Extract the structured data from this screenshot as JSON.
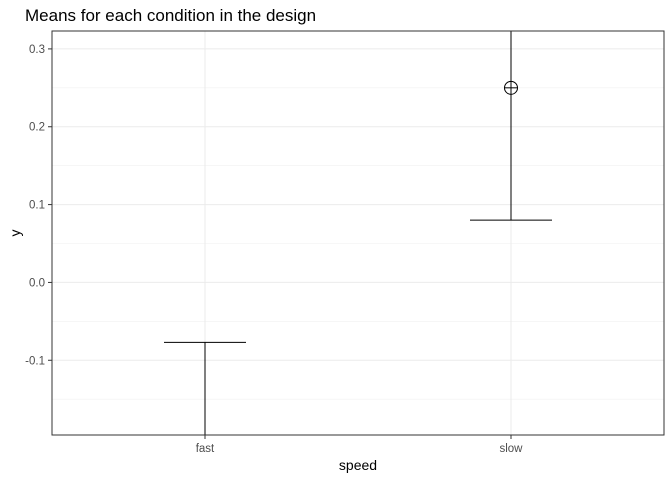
{
  "chart_data": {
    "type": "scatter",
    "title": "Means for each condition in the design",
    "xlabel": "speed",
    "ylabel": "y",
    "categories": [
      "fast",
      "slow"
    ],
    "y_ticks": [
      0.3,
      0.2,
      0.1,
      0.0,
      -0.1
    ],
    "y_tick_labels": [
      "0.3",
      "0.2",
      "0.1",
      "0.0",
      "-0.1"
    ],
    "ylim": [
      -0.196,
      0.323
    ],
    "grid": true,
    "series": [
      {
        "points": [
          {
            "category": "slow",
            "mean": 0.25
          }
        ],
        "error_bars": [
          {
            "category": "fast",
            "lower": -0.196,
            "upper": -0.077
          },
          {
            "category": "slow",
            "lower": 0.08,
            "upper": 0.323
          }
        ]
      }
    ]
  }
}
